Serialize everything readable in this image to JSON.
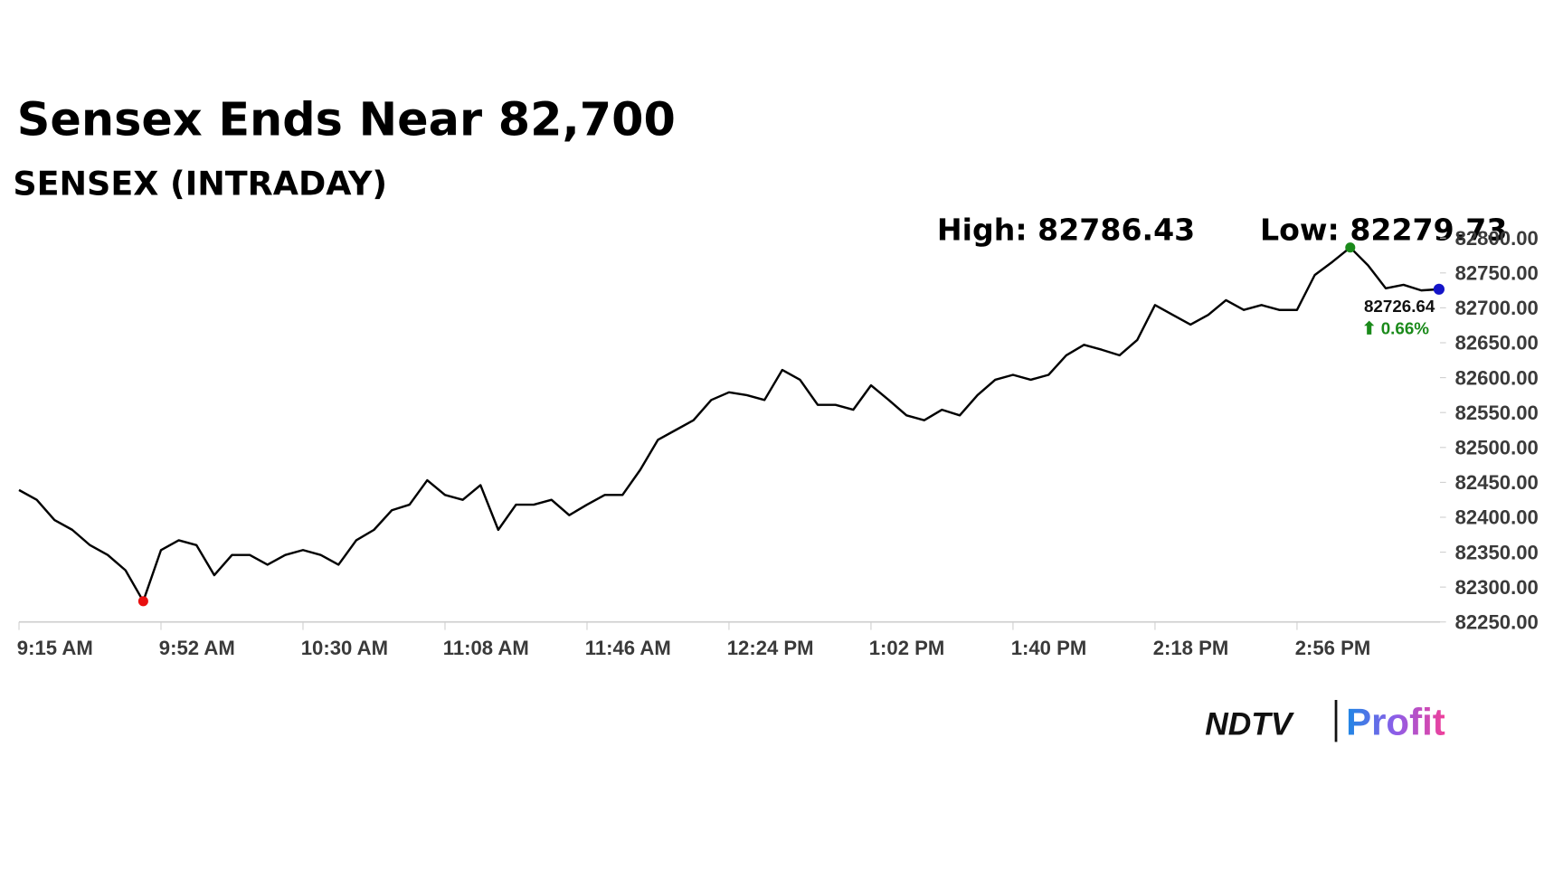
{
  "chart_data": {
    "type": "line",
    "title": "Sensex Ends Near 82,700",
    "subtitle": "SENSEX (INTRADAY)",
    "categories": [
      "9:15 AM",
      null,
      null,
      null,
      null,
      null,
      null,
      null,
      "9:52 AM",
      null,
      null,
      null,
      null,
      null,
      null,
      null,
      "10:30 AM",
      null,
      null,
      null,
      null,
      null,
      null,
      null,
      "11:08 AM",
      null,
      null,
      null,
      null,
      null,
      null,
      null,
      "11:46 AM",
      null,
      null,
      null,
      null,
      null,
      null,
      null,
      "12:24 PM",
      null,
      null,
      null,
      null,
      null,
      null,
      null,
      "1:02 PM",
      null,
      null,
      null,
      null,
      null,
      null,
      null,
      "1:40 PM",
      null,
      null,
      null,
      null,
      null,
      null,
      null,
      "2:18 PM",
      null,
      null,
      null,
      null,
      null,
      null,
      null,
      "2:56 PM",
      null,
      null,
      null,
      null,
      null,
      null,
      null,
      null
    ],
    "values": [
      82439,
      82425,
      82396,
      82382,
      82360,
      82346,
      82324,
      82279.73,
      82353,
      82367,
      82360,
      82317,
      82346,
      82346,
      82332,
      82346,
      82353,
      82346,
      82332,
      82367,
      82382,
      82410,
      82418,
      82453,
      82432,
      82425,
      82446,
      82382,
      82418,
      82418,
      82425,
      82403,
      82418,
      82432,
      82432,
      82468,
      82511,
      82525,
      82539,
      82568,
      82579,
      82575,
      82568,
      82611,
      82597,
      82561,
      82561,
      82554,
      82589,
      82568,
      82546,
      82539,
      82554,
      82546,
      82575,
      82597,
      82604,
      82597,
      82604,
      82632,
      82647,
      82640,
      82632,
      82654,
      82704,
      82690,
      82676,
      82690,
      82711,
      82697,
      82704,
      82697,
      82697,
      82747,
      82766,
      82786.43,
      82761,
      82728,
      82733,
      82725,
      82726.64
    ],
    "color": "#000000",
    "ylim": [
      82250,
      82800
    ],
    "yticks": [
      {
        "value": 82250,
        "label": "82250.00"
      },
      {
        "value": 82300,
        "label": "82300.00"
      },
      {
        "value": 82350,
        "label": "82350.00"
      },
      {
        "value": 82400,
        "label": "82400.00"
      },
      {
        "value": 82450,
        "label": "82450.00"
      },
      {
        "value": 82500,
        "label": "82500.00"
      },
      {
        "value": 82550,
        "label": "82550.00"
      },
      {
        "value": 82600,
        "label": "82600.00"
      },
      {
        "value": 82650,
        "label": "82650.00"
      },
      {
        "value": 82700,
        "label": "82700.00"
      },
      {
        "value": 82750,
        "label": "82750.00"
      },
      {
        "value": 82800,
        "label": "82800.00"
      }
    ],
    "high_label": "High: 82786.43",
    "low_label": "Low: 82279.73",
    "last_label": "82726.64",
    "change_label": "⬆ 0.66%",
    "high_color": "#1a8a1a",
    "low_color": "#e81010",
    "last_color": "#1414c8",
    "change_color": "#1a8a1a"
  },
  "logo": {
    "left": "NDTV",
    "right": "Profit"
  }
}
